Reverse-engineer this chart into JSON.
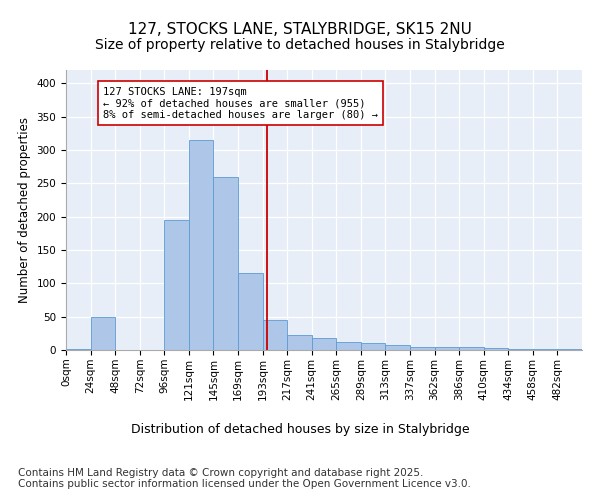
{
  "title_line1": "127, STOCKS LANE, STALYBRIDGE, SK15 2NU",
  "title_line2": "Size of property relative to detached houses in Stalybridge",
  "xlabel": "Distribution of detached houses by size in Stalybridge",
  "ylabel": "Number of detached properties",
  "bin_labels": [
    "0sqm",
    "24sqm",
    "48sqm",
    "72sqm",
    "96sqm",
    "121sqm",
    "145sqm",
    "169sqm",
    "193sqm",
    "217sqm",
    "241sqm",
    "265sqm",
    "289sqm",
    "313sqm",
    "337sqm",
    "362sqm",
    "386sqm",
    "410sqm",
    "434sqm",
    "458sqm",
    "482sqm"
  ],
  "bar_values": [
    1,
    50,
    0,
    0,
    195,
    315,
    260,
    115,
    45,
    22,
    18,
    12,
    10,
    7,
    5,
    5,
    4,
    3,
    1,
    1,
    1
  ],
  "bar_color": "#aec6e8",
  "bar_edge_color": "#5b9bd5",
  "background_color": "#e8eef7",
  "grid_color": "#ffffff",
  "vline_x": 8.2,
  "vline_color": "#cc0000",
  "annotation_text": "127 STOCKS LANE: 197sqm\n← 92% of detached houses are smaller (955)\n8% of semi-detached houses are larger (80) →",
  "annotation_box_color": "#cc0000",
  "ylim": [
    0,
    420
  ],
  "yticks": [
    0,
    50,
    100,
    150,
    200,
    250,
    300,
    350,
    400
  ],
  "footnote": "Contains HM Land Registry data © Crown copyright and database right 2025.\nContains public sector information licensed under the Open Government Licence v3.0.",
  "footnote_fontsize": 7.5,
  "title_fontsize1": 11,
  "title_fontsize2": 10,
  "tick_fontsize": 7.5,
  "ylabel_fontsize": 8.5,
  "xlabel_fontsize": 9
}
